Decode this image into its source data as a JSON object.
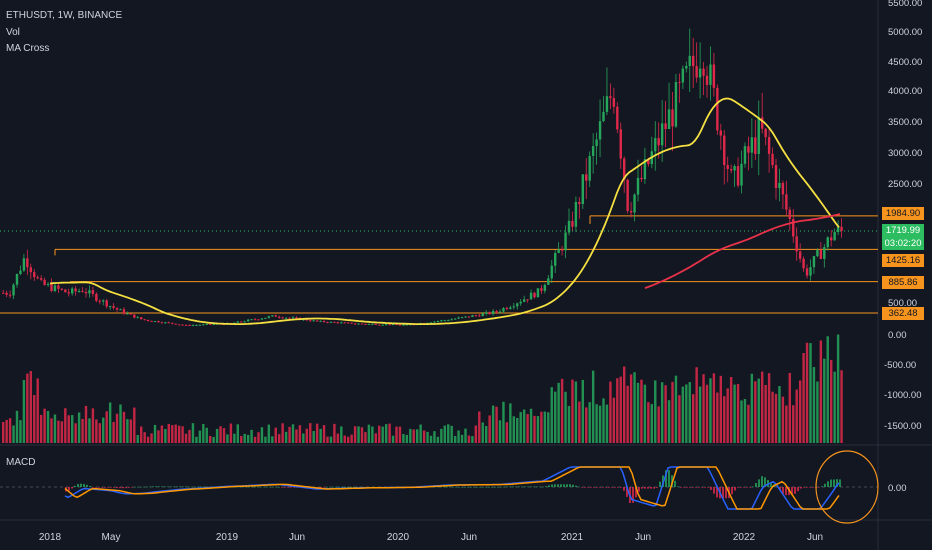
{
  "header": {
    "title": "ETHUSDT, 1W, BINANCE",
    "indicator_vol": "Vol",
    "indicator_ma": "MA Cross",
    "macd_label": "MACD"
  },
  "price_tags": {
    "level_1984": "1984.90",
    "last_price": "1719.99",
    "countdown": "03:02:20",
    "level_1425": "1425.16",
    "level_885": "885.86",
    "level_362": "362.48"
  },
  "chart_data": {
    "type": "candlestick",
    "price_ticks": [
      "5500.00",
      "5000.00",
      "4500.00",
      "4000.00",
      "3500.00",
      "3000.00",
      "2500.00",
      "500.00",
      "0.00"
    ],
    "volume_axis_ticks": [
      "-500.00",
      "-1000.00",
      "-1500.00"
    ],
    "macd_ticks": [
      "0.00"
    ],
    "x_ticks": [
      "2018",
      "May",
      "2019",
      "Jun",
      "2020",
      "Jun",
      "2021",
      "Jun",
      "2022",
      "Jun"
    ],
    "horizontal_levels": [
      1984.9,
      1425.16,
      885.86,
      362.48
    ],
    "last_price": 1719.99,
    "price_path": [
      {
        "t": "2017-12",
        "v": 700
      },
      {
        "t": "2018-01",
        "v": 1300
      },
      {
        "t": "2018-02",
        "v": 850
      },
      {
        "t": "2018-04",
        "v": 700
      },
      {
        "t": "2018-05",
        "v": 750
      },
      {
        "t": "2018-07",
        "v": 460
      },
      {
        "t": "2018-09",
        "v": 220
      },
      {
        "t": "2018-12",
        "v": 100
      },
      {
        "t": "2019-03",
        "v": 140
      },
      {
        "t": "2019-06",
        "v": 300
      },
      {
        "t": "2019-09",
        "v": 180
      },
      {
        "t": "2019-12",
        "v": 130
      },
      {
        "t": "2020-03",
        "v": 110
      },
      {
        "t": "2020-06",
        "v": 230
      },
      {
        "t": "2020-09",
        "v": 380
      },
      {
        "t": "2020-12",
        "v": 730
      },
      {
        "t": "2021-02",
        "v": 1800
      },
      {
        "t": "2021-05",
        "v": 4100
      },
      {
        "t": "2021-06",
        "v": 2100
      },
      {
        "t": "2021-08",
        "v": 3200
      },
      {
        "t": "2021-11",
        "v": 4800
      },
      {
        "t": "2022-01",
        "v": 2500
      },
      {
        "t": "2022-03",
        "v": 3400
      },
      {
        "t": "2022-05",
        "v": 1900
      },
      {
        "t": "2022-06",
        "v": 1000
      },
      {
        "t": "2022-08",
        "v": 1719.99
      }
    ],
    "series": [
      {
        "name": "MA short",
        "color": "#f5e042"
      },
      {
        "name": "MA long",
        "color": "#e8324a"
      }
    ],
    "colors": {
      "up": "#26a65b",
      "down": "#e0294a",
      "ma_short": "#f5e042",
      "ma_long": "#e8324a",
      "level": "#f7941d",
      "macd": "#2962ff",
      "signal": "#ff9800"
    }
  }
}
